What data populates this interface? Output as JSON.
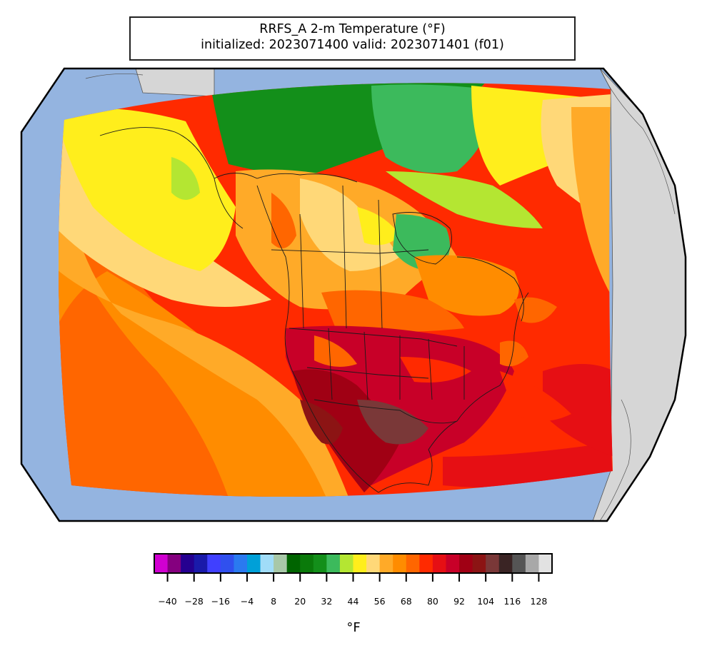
{
  "title": {
    "line1": "RRFS_A 2-m Temperature (°F)",
    "line2": "initialized: 2023071400 valid: 2023071401 (f01)"
  },
  "colorbar": {
    "unit_label": "°F",
    "tick_labels": [
      "−40",
      "−28",
      "−16",
      "−4",
      "8",
      "20",
      "32",
      "44",
      "56",
      "68",
      "80",
      "92",
      "104",
      "116",
      "128"
    ],
    "colors": [
      "#d100d1",
      "#85007f",
      "#250090",
      "#1a1aaa",
      "#4040ff",
      "#3050ee",
      "#2a7af0",
      "#00a0d8",
      "#a0dcf8",
      "#a8c8a8",
      "#006400",
      "#0a7a0a",
      "#138f1a",
      "#3cba5c",
      "#b4e632",
      "#ffee1c",
      "#ffd878",
      "#ffaa28",
      "#ff8c00",
      "#ff6600",
      "#ff2a00",
      "#e60f14",
      "#c80028",
      "#a00014",
      "#8c1414",
      "#7a3838",
      "#3a2424",
      "#555555",
      "#a8a8a8",
      "#e2e2e2"
    ]
  },
  "map": {
    "ocean_color": "#94b4e0",
    "land_outside_color": "#d6d6d6"
  }
}
